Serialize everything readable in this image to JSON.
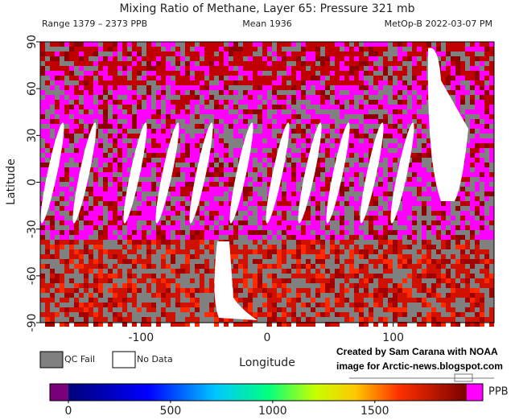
{
  "header": {
    "title": "Mixing Ratio of Methane, Layer 65: Pressure 321 mb",
    "range": "Range 1379 – 2373 PPB",
    "mean": "Mean 1936",
    "satellite": "MetOp-B 2022-03-07 PM"
  },
  "map": {
    "xlabel": "Longitude",
    "ylabel": "Latitude",
    "xlim": [
      -180,
      180
    ],
    "ylim": [
      -90,
      90
    ],
    "xticks": [
      -100,
      0,
      100
    ],
    "yticks": [
      -90,
      -60,
      -30,
      0,
      30,
      60,
      90
    ]
  },
  "legend": [
    {
      "label": "QC Fail",
      "color": "#808080"
    },
    {
      "label": "No Data",
      "color": "#ffffff"
    }
  ],
  "credit": [
    "Created by Sam Carana with NOAA",
    "image for Arctic-news.blogspot.com"
  ],
  "colorbar": {
    "unit": "PPB",
    "lim": [
      0,
      1950
    ],
    "ticks": [
      0,
      500,
      1000,
      1500
    ]
  }
}
